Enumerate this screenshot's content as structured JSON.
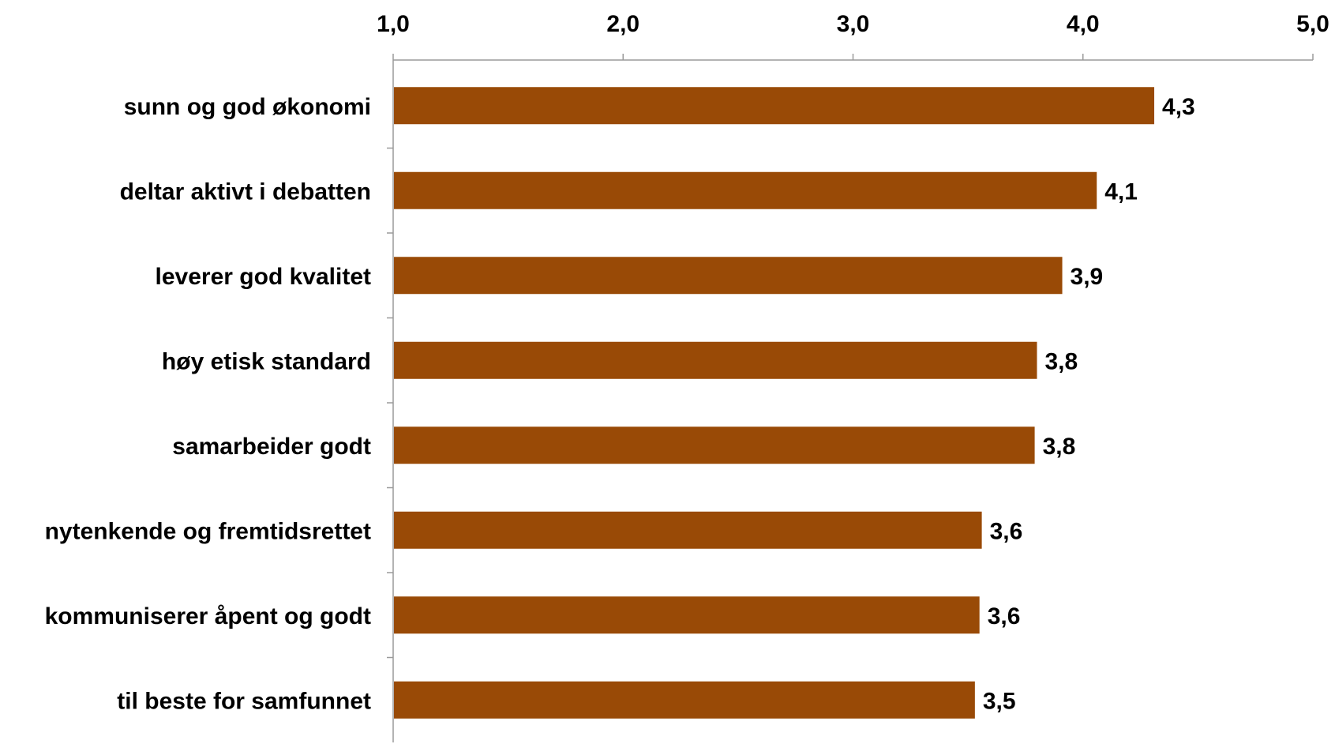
{
  "chart_data": {
    "type": "bar",
    "orientation": "horizontal",
    "categories": [
      "sunn og god økonomi",
      "deltar aktivt i debatten",
      "leverer god kvalitet",
      "høy etisk standard",
      "samarbeider godt",
      "nytenkende og fremtidsrettet",
      "kommuniserer åpent og godt",
      "til beste for samfunnet"
    ],
    "values": [
      4.31,
      4.06,
      3.91,
      3.8,
      3.79,
      3.56,
      3.55,
      3.53
    ],
    "value_labels": [
      "4,3",
      "4,1",
      "3,9",
      "3,8",
      "3,8",
      "3,6",
      "3,6",
      "3,5"
    ],
    "x_ticks": [
      1,
      2,
      3,
      4,
      5
    ],
    "x_tick_labels": [
      "1,0",
      "2,0",
      "3,0",
      "4,0",
      "5,0"
    ],
    "xlim": [
      1,
      5
    ],
    "x_axis_position": "top",
    "grid": false,
    "legend": "none",
    "bar_color": "#994a06",
    "title": "",
    "xlabel": "",
    "ylabel": ""
  }
}
